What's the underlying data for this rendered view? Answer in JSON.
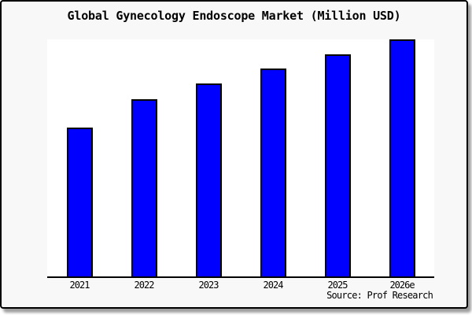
{
  "header": {
    "title": "Global Gynecology Endoscope Market (Million USD)"
  },
  "footer": {
    "source_label": "Source: Prof Research"
  },
  "colors": {
    "bar_fill": "#0000ff",
    "bar_stroke": "#000000",
    "card_background": "#f8f8f8",
    "plot_background": "#ffffff",
    "frame_border": "#000000"
  },
  "chart_data": {
    "type": "bar",
    "title": "Global Gynecology Endoscope Market (Million USD)",
    "categories": [
      "2021",
      "2022",
      "2023",
      "2024",
      "2025",
      "2026e"
    ],
    "values_pct_of_max": [
      62.8,
      74.9,
      81.4,
      87.7,
      93.7,
      100
    ],
    "xlabel": "",
    "ylabel": "",
    "y_axis_visible": false,
    "y_tick_labels": [],
    "gridlines": false,
    "legend": null,
    "bar_width_fraction": 0.4,
    "tallest_bar_reaches_plot_top": true
  }
}
